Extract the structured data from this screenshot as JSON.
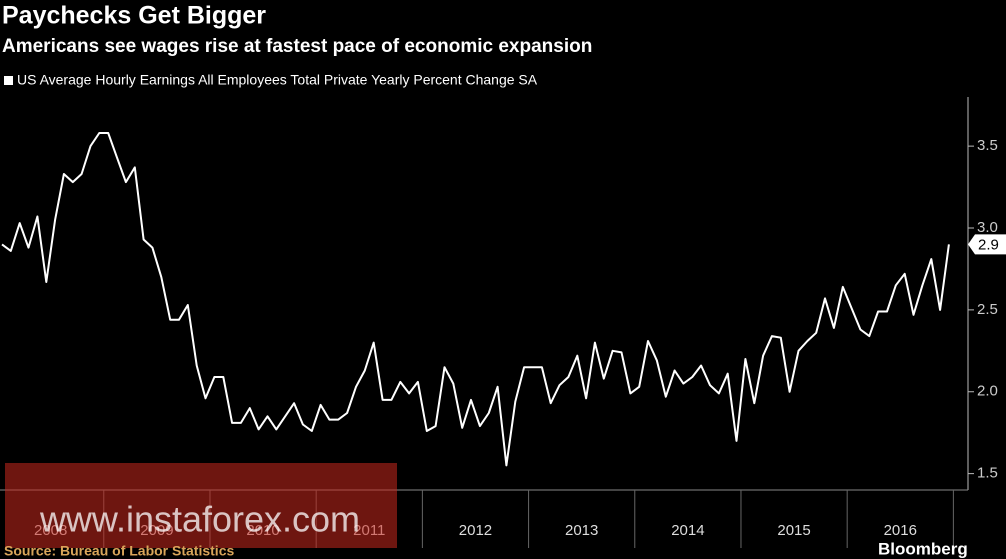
{
  "chart_data": {
    "type": "line",
    "title": "Paychecks Get Bigger",
    "subtitle": "Americans see wages rise at fastest pace of economic expansion",
    "source": "Source: Bureau of Labor Statistics",
    "brand": "Bloomberg",
    "watermark": "www.instaforex.com",
    "categories": [
      null,
      null,
      null,
      null,
      null,
      "2008",
      null,
      null,
      null,
      null,
      null,
      null,
      null,
      null,
      null,
      null,
      null,
      "2009",
      null,
      null,
      null,
      null,
      null,
      null,
      null,
      null,
      null,
      null,
      null,
      "2010",
      null,
      null,
      null,
      null,
      null,
      null,
      null,
      null,
      null,
      null,
      null,
      "2011",
      null,
      null,
      null,
      null,
      null,
      null,
      null,
      null,
      null,
      null,
      null,
      "2012",
      null,
      null,
      null,
      null,
      null,
      null,
      null,
      null,
      null,
      null,
      null,
      "2013",
      null,
      null,
      null,
      null,
      null,
      null,
      null,
      null,
      null,
      null,
      null,
      "2014",
      null,
      null,
      null,
      null,
      null,
      null,
      null,
      null,
      null,
      null,
      null,
      "2015",
      null,
      null,
      null,
      null,
      null,
      null,
      null,
      null,
      null,
      null,
      null,
      "2016",
      null,
      null,
      null,
      null,
      null,
      null
    ],
    "series": [
      {
        "name": "US Average Hourly Earnings All Employees Total Private Yearly Percent Change SA",
        "color": "#ffffff",
        "values": [
          2.9,
          2.86,
          3.03,
          2.88,
          3.07,
          2.67,
          3.05,
          3.33,
          3.28,
          3.33,
          3.5,
          3.58,
          3.58,
          3.43,
          3.28,
          3.37,
          2.93,
          2.88,
          2.7,
          2.44,
          2.44,
          2.53,
          2.16,
          1.96,
          2.09,
          2.09,
          1.81,
          1.81,
          1.9,
          1.77,
          1.85,
          1.77,
          1.85,
          1.93,
          1.8,
          1.76,
          1.92,
          1.83,
          1.83,
          1.87,
          2.03,
          2.13,
          2.3,
          1.95,
          1.95,
          2.06,
          1.99,
          2.06,
          1.76,
          1.79,
          2.15,
          2.05,
          1.78,
          1.95,
          1.79,
          1.87,
          2.03,
          1.55,
          1.94,
          2.15,
          2.15,
          2.15,
          1.93,
          2.04,
          2.09,
          2.22,
          1.96,
          2.3,
          2.08,
          2.25,
          2.24,
          1.99,
          2.03,
          2.31,
          2.19,
          1.97,
          2.13,
          2.05,
          2.09,
          2.16,
          2.04,
          1.99,
          2.11,
          1.7,
          2.2,
          1.93,
          2.22,
          2.34,
          2.33,
          2.0,
          2.25,
          2.31,
          2.36,
          2.57,
          2.39,
          2.64,
          2.51,
          2.38,
          2.34,
          2.49,
          2.49,
          2.65,
          2.72,
          2.47,
          2.65,
          2.81,
          2.5,
          2.9
        ]
      }
    ],
    "ylim": [
      1.4,
      3.8
    ],
    "yticks": [
      {
        "value": 1.5,
        "label": "1.5"
      },
      {
        "value": 2.0,
        "label": "2.0"
      },
      {
        "value": 2.5,
        "label": "2.5"
      },
      {
        "value": 3.0,
        "label": "3.0"
      },
      {
        "value": 3.5,
        "label": "3.5"
      }
    ],
    "grid": false
  }
}
